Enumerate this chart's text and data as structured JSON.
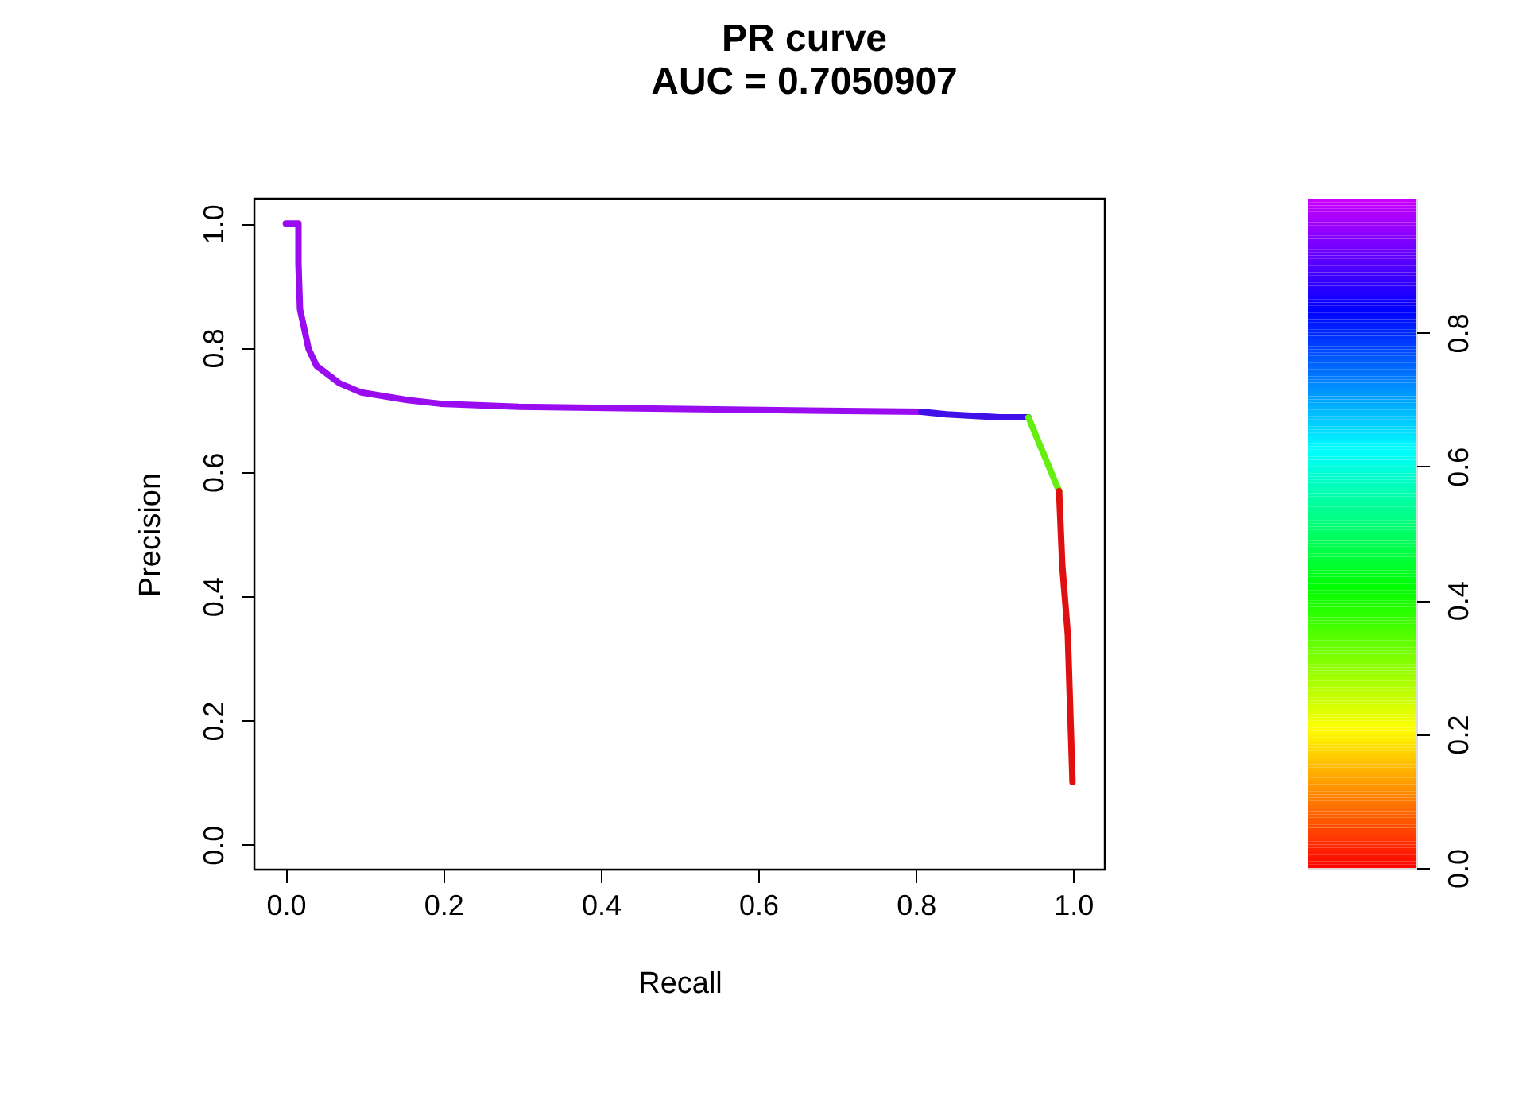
{
  "chart_data": {
    "type": "line",
    "title": "PR curve",
    "subtitle": "AUC = 0.7050907",
    "xlabel": "Recall",
    "ylabel": "Precision",
    "series": [
      {
        "color": "#9a0cf0",
        "x": [
          0,
          0.016,
          0.016,
          0.018,
          0.029,
          0.039,
          0.068,
          0.096,
          0.154,
          0.196,
          0.296,
          0.604,
          0.807
        ],
        "values": [
          1.0,
          1.0,
          0.936,
          0.862,
          0.798,
          0.771,
          0.743,
          0.728,
          0.716,
          0.71,
          0.705,
          0.7,
          0.697
        ]
      },
      {
        "color": "#4010e8",
        "x": [
          0.807,
          0.839,
          0.907,
          0.943
        ],
        "values": [
          0.697,
          0.693,
          0.688,
          0.688
        ]
      },
      {
        "color": "#66ee10",
        "x": [
          0.943,
          0.982
        ],
        "values": [
          0.688,
          0.569
        ]
      },
      {
        "color": "#e01010",
        "x": [
          0.982,
          0.986,
          0.993,
          0.999
        ],
        "values": [
          0.569,
          0.45,
          0.339,
          0.101
        ]
      }
    ],
    "clim": [
      0,
      1
    ],
    "cticks": [
      {
        "value": 0,
        "label": "0.0"
      },
      0.2,
      0.4,
      0.6,
      0.8
    ],
    "xlim": [
      -0.04,
      1.04
    ],
    "ylim": [
      -0.04,
      1.04
    ],
    "xticks": [
      {
        "value": 0,
        "label": "0.0"
      },
      0.2,
      0.4,
      0.6,
      0.8,
      {
        "value": 1,
        "label": "1.0"
      }
    ],
    "yticks": [
      {
        "value": 0,
        "label": "0.0"
      },
      0.2,
      0.4,
      0.6,
      0.8,
      {
        "value": 1,
        "label": "1.0"
      }
    ],
    "grid": false,
    "legend": false,
    "marker": "none",
    "line_style": "solid"
  }
}
